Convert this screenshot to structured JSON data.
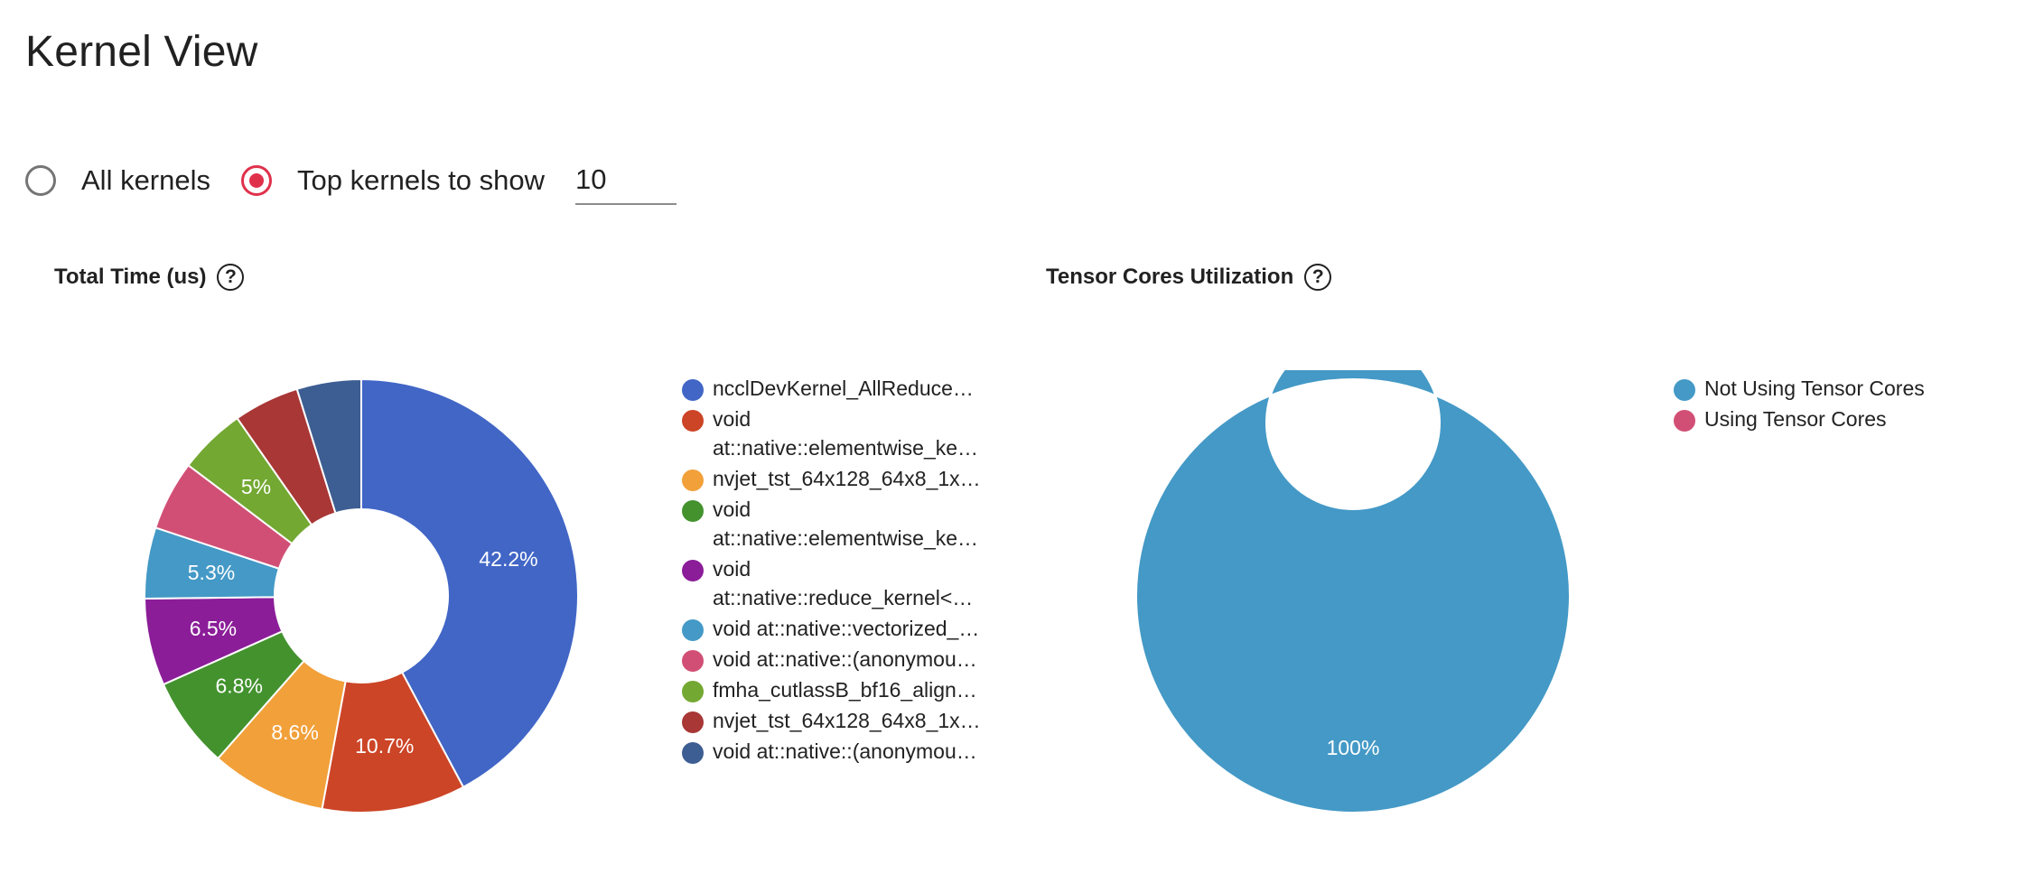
{
  "page": {
    "title": "Kernel View"
  },
  "controls": {
    "all_kernels_label": "All kernels",
    "top_kernels_label": "Top kernels to show",
    "top_kernels_value": "10",
    "selected": "top",
    "accent_color": "#e0314b"
  },
  "help_icon_glyph": "?",
  "chart_data": [
    {
      "type": "pie",
      "donut": true,
      "title": "Total Time (us)",
      "legend_position": "right",
      "slices": [
        {
          "label": "ncclDevKernel_AllReduce…",
          "value": 42.2,
          "data_label": "42.2%",
          "color": "#4166c6"
        },
        {
          "label": "void\nat::native::elementwise_ke…",
          "value": 10.7,
          "data_label": "10.7%",
          "color": "#cc4527"
        },
        {
          "label": "nvjet_tst_64x128_64x8_1x…",
          "value": 8.6,
          "data_label": "8.6%",
          "color": "#f2a03a"
        },
        {
          "label": "void\nat::native::elementwise_ke…",
          "value": 6.8,
          "data_label": "6.8%",
          "color": "#43922e"
        },
        {
          "label": "void\nat::native::reduce_kernel<…",
          "value": 6.5,
          "data_label": "6.5%",
          "color": "#8b1d98"
        },
        {
          "label": "void at::native::vectorized_…",
          "value": 5.3,
          "data_label": "5.3%",
          "color": "#4499c6"
        },
        {
          "label": "void at::native::(anonymou…",
          "value": 5.2,
          "data_label": "",
          "color": "#d14f75"
        },
        {
          "label": "fmha_cutlassB_bf16_align…",
          "value": 5.0,
          "data_label": "5%",
          "color": "#73a832"
        },
        {
          "label": "nvjet_tst_64x128_64x8_1x…",
          "value": 4.9,
          "data_label": "",
          "color": "#a83736"
        },
        {
          "label": "void at::native::(anonymou…",
          "value": 4.8,
          "data_label": "",
          "color": "#3d5e92"
        }
      ]
    },
    {
      "type": "pie",
      "donut": true,
      "title": "Tensor Cores Utilization",
      "legend_position": "right",
      "slices": [
        {
          "label": "Not Using Tensor Cores",
          "value": 100,
          "data_label": "100%",
          "color": "#4499c6"
        },
        {
          "label": "Using Tensor Cores",
          "value": 0,
          "data_label": "",
          "color": "#d14f75"
        }
      ]
    }
  ]
}
